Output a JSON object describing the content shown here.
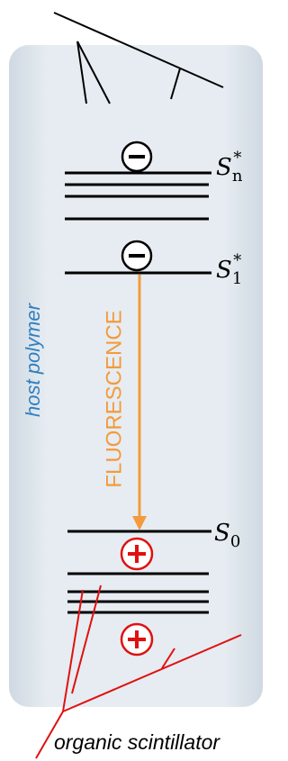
{
  "diagram": {
    "host_label": "host polymer",
    "transition_label": "FLUORESCENCE",
    "caption": "organic scintillator",
    "levels": [
      {
        "symbol": "S",
        "subscript": "n",
        "superscript": "*"
      },
      {
        "symbol": "S",
        "subscript": "1",
        "superscript": "*"
      },
      {
        "symbol": "S",
        "subscript": "0"
      }
    ]
  }
}
